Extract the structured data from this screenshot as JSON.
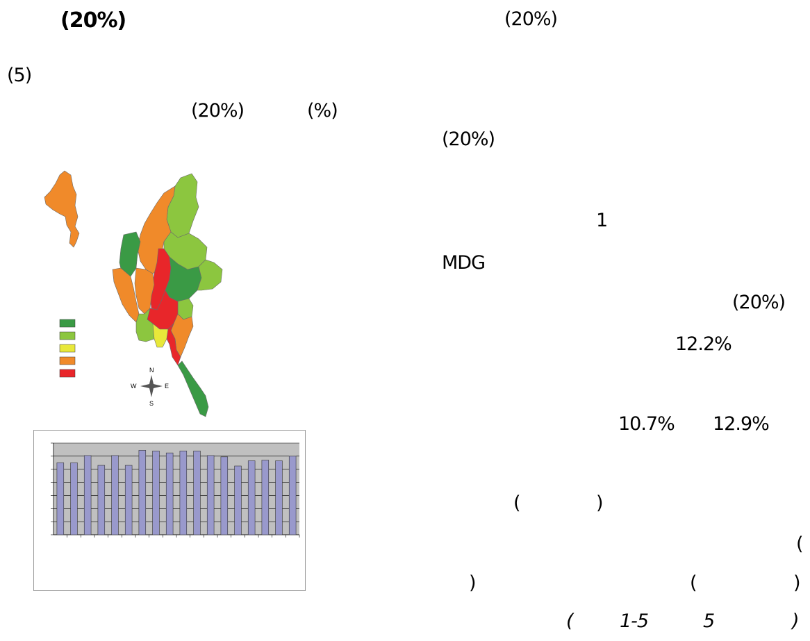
{
  "text": {
    "heading_pct": "(20%)",
    "top_right_pct": "(20%)",
    "five": "(5)",
    "left_pct": "(20%)",
    "left_pct_sign": "(%)",
    "right_pct_1": "(20%)",
    "one": "1",
    "mdg": "MDG",
    "right_pct_2": "(20%)",
    "val_122": "12.2%",
    "val_107": "10.7%",
    "val_129": "12.9%",
    "paren_open_1": "(",
    "paren_close_1": ")",
    "paren_open_2": "(",
    "paren_close_2": ")",
    "paren_open_3": "(",
    "paren_close_3": ")",
    "cap_open": "(",
    "cap_range": "1-5",
    "cap_five": "5",
    "cap_close": ")"
  },
  "map": {
    "colors": {
      "dark_green": "#3a9a45",
      "light_green": "#8cc63f",
      "yellow": "#e8e83a",
      "orange": "#f08a2a",
      "red": "#e8262a"
    },
    "compass": {
      "n": "N",
      "s": "S",
      "e": "E",
      "w": "W"
    }
  },
  "chart_data": {
    "type": "bar",
    "values": [
      11.0,
      11.0,
      12.1,
      10.6,
      12.1,
      10.6,
      12.9,
      12.8,
      12.5,
      12.8,
      12.8,
      12.1,
      11.9,
      10.5,
      11.3,
      11.4,
      11.3,
      12.0
    ],
    "ylim": [
      0,
      14
    ],
    "y_ticks": [
      0,
      2,
      4,
      6,
      8,
      10,
      12,
      14
    ],
    "grid": true,
    "bar_color": "#9999cc",
    "plot_bg": "#c0c0c0",
    "legend": "none"
  }
}
